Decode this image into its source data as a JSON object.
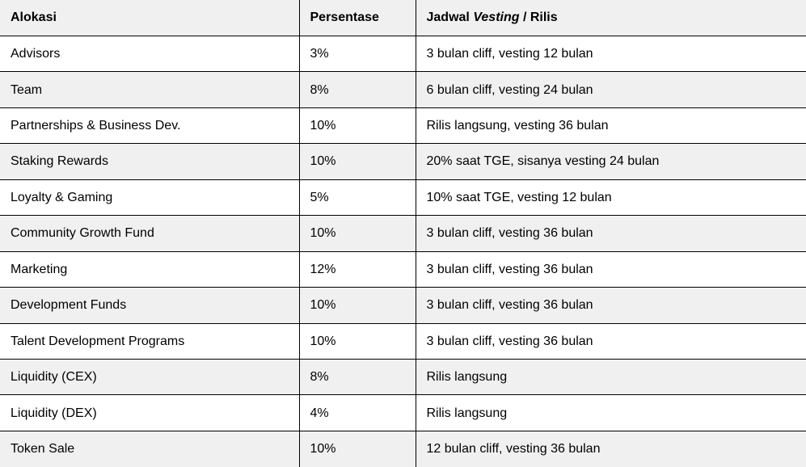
{
  "colors": {
    "stripe": "#f0f0f0",
    "row_white": "#ffffff",
    "border": "#000000",
    "text": "#000000"
  },
  "table": {
    "header": {
      "col1": "Alokasi",
      "col2": "Persentase",
      "col3_prefix": "Jadwal ",
      "col3_italic": "Vesting",
      "col3_suffix": " / Rilis"
    },
    "rows": [
      {
        "alokasi": "Advisors",
        "persentase": "3%",
        "jadwal": "3 bulan cliff, vesting 12 bulan"
      },
      {
        "alokasi": "Team",
        "persentase": "8%",
        "jadwal": "6 bulan cliff, vesting 24 bulan"
      },
      {
        "alokasi": "Partnerships & Business Dev.",
        "persentase": "10%",
        "jadwal": "Rilis langsung, vesting 36 bulan"
      },
      {
        "alokasi": "Staking Rewards",
        "persentase": "10%",
        "jadwal": "20% saat TGE, sisanya vesting 24 bulan"
      },
      {
        "alokasi": "Loyalty & Gaming",
        "persentase": "5%",
        "jadwal": "10% saat TGE, vesting 12 bulan"
      },
      {
        "alokasi": "Community Growth Fund",
        "persentase": "10%",
        "jadwal": "3 bulan cliff, vesting 36 bulan"
      },
      {
        "alokasi": "Marketing",
        "persentase": "12%",
        "jadwal": "3 bulan cliff, vesting 36 bulan"
      },
      {
        "alokasi": "Development Funds",
        "persentase": "10%",
        "jadwal": "3 bulan cliff, vesting 36 bulan"
      },
      {
        "alokasi": "Talent Development Programs",
        "persentase": "10%",
        "jadwal": "3 bulan cliff, vesting 36 bulan"
      },
      {
        "alokasi": "Liquidity (CEX)",
        "persentase": "8%",
        "jadwal": "Rilis langsung"
      },
      {
        "alokasi": "Liquidity (DEX)",
        "persentase": "4%",
        "jadwal": "Rilis langsung"
      },
      {
        "alokasi": "Token Sale",
        "persentase": "10%",
        "jadwal": "12 bulan cliff, vesting 36 bulan"
      }
    ]
  }
}
